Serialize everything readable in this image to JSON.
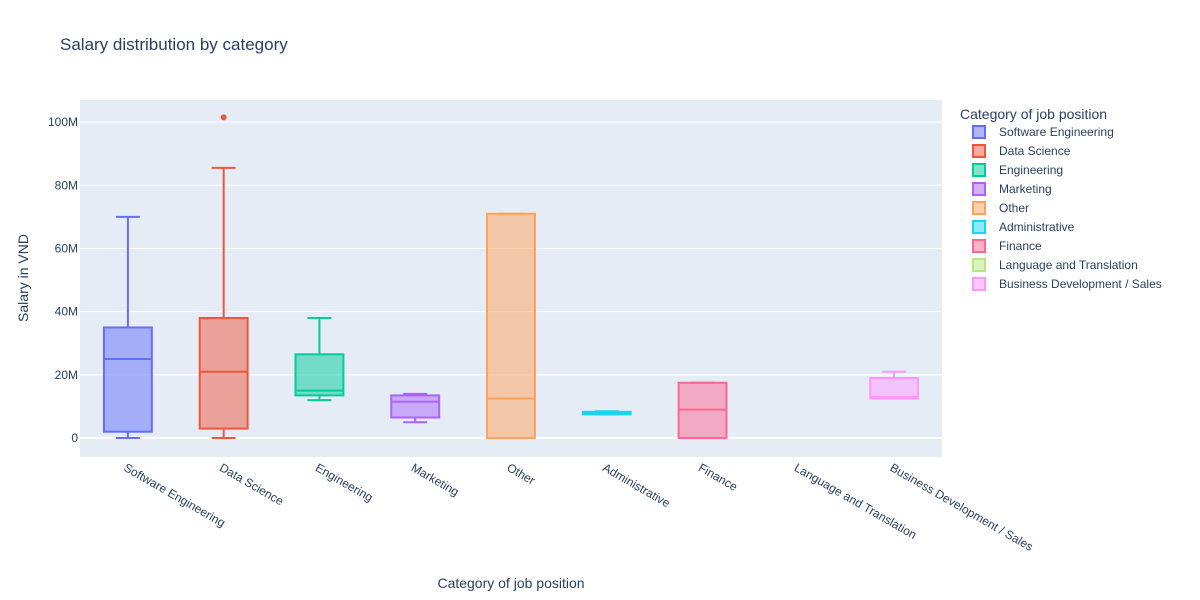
{
  "title": "Salary distribution by category",
  "chart_data": {
    "type": "box",
    "title": "Salary distribution by category",
    "xlabel": "Category of job position",
    "ylabel": "Salary in VND",
    "ylim": [
      -6000000,
      107000000
    ],
    "yticks": [
      0,
      20000000,
      40000000,
      60000000,
      80000000,
      100000000
    ],
    "ytick_labels": [
      "0",
      "20M",
      "40M",
      "60M",
      "80M",
      "100M"
    ],
    "legend_title": "Category of job position",
    "legend_position": "right",
    "grid": true,
    "categories": [
      "Software Engineering",
      "Data Science",
      "Engineering",
      "Marketing",
      "Other",
      "Administrative",
      "Finance",
      "Language and Translation",
      "Business Development / Sales"
    ],
    "series": [
      {
        "name": "Software Engineering",
        "color": "#636efa",
        "min": 0,
        "q1": 2000000,
        "median": 25000000,
        "q3": 35000000,
        "max": 70000000,
        "outliers": []
      },
      {
        "name": "Data Science",
        "color": "#ef553b",
        "min": 0,
        "q1": 3000000,
        "median": 21000000,
        "q3": 38000000,
        "max": 85500000,
        "outliers": [
          101500000
        ]
      },
      {
        "name": "Engineering",
        "color": "#00cc96",
        "min": 12000000,
        "q1": 13500000,
        "median": 15000000,
        "q3": 26500000,
        "max": 38000000,
        "outliers": []
      },
      {
        "name": "Marketing",
        "color": "#ab63fa",
        "min": 5000000,
        "q1": 6500000,
        "median": 11500000,
        "q3": 13500000,
        "max": 14000000,
        "outliers": []
      },
      {
        "name": "Other",
        "color": "#ffa15a",
        "min": 0,
        "q1": 0,
        "median": 12500000,
        "q3": 71000000,
        "max": 71000000,
        "outliers": []
      },
      {
        "name": "Administrative",
        "color": "#19d3f3",
        "min": 7500000,
        "q1": 7500000,
        "median": 8000000,
        "q3": 8300000,
        "max": 8500000,
        "outliers": []
      },
      {
        "name": "Finance",
        "color": "#ff6692",
        "min": 0,
        "q1": 0,
        "median": 9000000,
        "q3": 17500000,
        "max": 17500000,
        "outliers": []
      },
      {
        "name": "Language and Translation",
        "color": "#b6e880",
        "min": null,
        "q1": null,
        "median": null,
        "q3": null,
        "max": null,
        "outliers": []
      },
      {
        "name": "Business Development / Sales",
        "color": "#ff97ff",
        "min": 12500000,
        "q1": 12500000,
        "median": 13000000,
        "q3": 19000000,
        "max": 21000000,
        "outliers": []
      }
    ]
  }
}
